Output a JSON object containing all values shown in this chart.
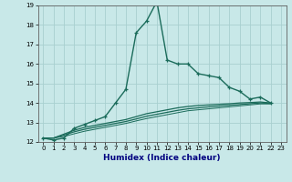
{
  "xlabel": "Humidex (Indice chaleur)",
  "bg_color": "#c8e8e8",
  "grid_color": "#a8d0d0",
  "line_color": "#1a6b5a",
  "xlim": [
    -0.5,
    23.5
  ],
  "ylim": [
    12,
    19
  ],
  "yticks": [
    12,
    13,
    14,
    15,
    16,
    17,
    18,
    19
  ],
  "xticks": [
    0,
    1,
    2,
    3,
    4,
    5,
    6,
    7,
    8,
    9,
    10,
    11,
    12,
    13,
    14,
    15,
    16,
    17,
    18,
    19,
    20,
    21,
    22,
    23
  ],
  "series": [
    {
      "x": [
        0,
        1,
        2,
        3,
        4,
        5,
        6,
        7,
        8,
        9,
        10,
        11,
        12,
        13,
        14,
        15,
        16,
        17,
        18,
        19,
        20,
        21,
        22
      ],
      "y": [
        12.2,
        12.1,
        12.2,
        12.7,
        12.9,
        13.1,
        13.3,
        14.0,
        14.7,
        17.6,
        18.2,
        19.2,
        16.2,
        16.0,
        16.0,
        15.5,
        15.4,
        15.3,
        14.8,
        14.6,
        14.2,
        14.3,
        14.0
      ],
      "style": "-",
      "marker": "+",
      "lw": 1.0,
      "ms": 3.5
    },
    {
      "x": [
        0,
        1,
        2,
        3,
        4,
        5,
        6,
        7,
        8,
        9,
        10,
        11,
        12,
        13,
        14,
        15,
        16,
        17,
        18,
        19,
        20,
        21,
        22
      ],
      "y": [
        12.2,
        12.2,
        12.4,
        12.6,
        12.75,
        12.85,
        12.95,
        13.05,
        13.15,
        13.3,
        13.45,
        13.55,
        13.65,
        13.75,
        13.82,
        13.87,
        13.9,
        13.93,
        13.96,
        14.0,
        14.02,
        14.05,
        14.0
      ],
      "style": "-",
      "marker": null,
      "lw": 0.9
    },
    {
      "x": [
        0,
        1,
        2,
        3,
        4,
        5,
        6,
        7,
        8,
        9,
        10,
        11,
        12,
        13,
        14,
        15,
        16,
        17,
        18,
        19,
        20,
        21,
        22
      ],
      "y": [
        12.2,
        12.2,
        12.35,
        12.52,
        12.65,
        12.75,
        12.85,
        12.95,
        13.05,
        13.18,
        13.32,
        13.42,
        13.52,
        13.62,
        13.7,
        13.75,
        13.8,
        13.84,
        13.88,
        13.92,
        13.96,
        14.0,
        13.98
      ],
      "style": "-",
      "marker": null,
      "lw": 0.9
    },
    {
      "x": [
        0,
        1,
        2,
        3,
        4,
        5,
        6,
        7,
        8,
        9,
        10,
        11,
        12,
        13,
        14,
        15,
        16,
        17,
        18,
        19,
        20,
        21,
        22
      ],
      "y": [
        12.2,
        12.2,
        12.28,
        12.42,
        12.55,
        12.65,
        12.75,
        12.85,
        12.95,
        13.08,
        13.2,
        13.3,
        13.4,
        13.5,
        13.6,
        13.65,
        13.7,
        13.75,
        13.8,
        13.85,
        13.9,
        13.95,
        13.95
      ],
      "style": "-",
      "marker": null,
      "lw": 0.7
    }
  ]
}
